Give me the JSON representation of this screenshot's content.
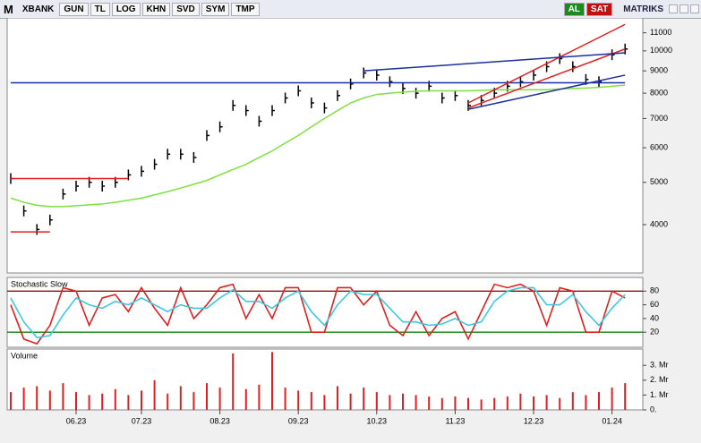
{
  "toolbar": {
    "symbol_icon": "M",
    "symbol": "XBANK",
    "buttons": [
      "GUN",
      "TL",
      "LOG",
      "KHN",
      "SVD",
      "SYM",
      "TMP"
    ],
    "buy": "AL",
    "sell": "SAT",
    "brand": "MATRIKS"
  },
  "chart_data": [
    {
      "type": "stock",
      "log": true,
      "color": "#000000",
      "values": [
        5100,
        4300,
        3900,
        4100,
        4700,
        4900,
        5000,
        4900,
        5000,
        5200,
        5300,
        5500,
        5800,
        5800,
        5700,
        6400,
        6700,
        7500,
        7300,
        6900,
        7300,
        7800,
        8100,
        7600,
        7400,
        7900,
        8400,
        8900,
        8800,
        8500,
        8200,
        8000,
        8300,
        7800,
        7900,
        7500,
        7700,
        8000,
        8300,
        8500,
        8800,
        9200,
        9600,
        9200,
        8600,
        8500,
        9800,
        10100
      ],
      "ma": {
        "color": "#7ee040",
        "values": [
          4600,
          4500,
          4430,
          4400,
          4400,
          4420,
          4440,
          4460,
          4500,
          4550,
          4600,
          4680,
          4760,
          4850,
          4950,
          5050,
          5200,
          5350,
          5500,
          5700,
          5900,
          6150,
          6400,
          6700,
          7000,
          7300,
          7600,
          7800,
          7950,
          8000,
          8050,
          8080,
          8100,
          8100,
          8100,
          8100,
          8120,
          8150,
          8150,
          8150,
          8150,
          8150,
          8180,
          8200,
          8220,
          8250,
          8300,
          8350
        ]
      },
      "lines": [
        {
          "color": "#1a2fa0",
          "x": [
            0,
            47
          ],
          "values": [
            8450,
            8450
          ]
        },
        {
          "color": "#e02020",
          "x": [
            0,
            9
          ],
          "values": [
            5100,
            5100
          ]
        },
        {
          "color": "#e02020",
          "x": [
            0,
            3
          ],
          "values": [
            3850,
            3850
          ]
        },
        {
          "color": "#e02020",
          "x": [
            35,
            47
          ],
          "values": [
            7600,
            11500
          ]
        },
        {
          "color": "#e02020",
          "x": [
            35,
            47
          ],
          "values": [
            7400,
            10100
          ]
        },
        {
          "color": "#1a2fa0",
          "x": [
            35,
            47
          ],
          "values": [
            7350,
            8800
          ]
        },
        {
          "color": "#1a2fa0",
          "x": [
            27,
            47
          ],
          "values": [
            9000,
            9900
          ]
        }
      ],
      "ylim": [
        3100,
        11900
      ],
      "yticks": [
        4000,
        5000,
        6000,
        7000,
        8000,
        9000,
        10000,
        11000
      ]
    },
    {
      "type": "line",
      "title": "Stochastic Slow",
      "series": [
        {
          "color": "#e02020",
          "values": [
            60,
            10,
            3,
            30,
            85,
            80,
            30,
            70,
            75,
            50,
            85,
            55,
            30,
            85,
            40,
            60,
            85,
            90,
            40,
            75,
            40,
            85,
            85,
            20,
            20,
            85,
            85,
            60,
            80,
            30,
            15,
            50,
            15,
            40,
            50,
            10,
            50,
            90,
            85,
            90,
            80,
            30,
            85,
            80,
            20,
            20,
            80,
            70
          ]
        },
        {
          "color": "#3cc8e0",
          "values": [
            70,
            35,
            12,
            15,
            45,
            70,
            60,
            55,
            65,
            60,
            70,
            60,
            50,
            60,
            55,
            55,
            70,
            82,
            65,
            65,
            55,
            70,
            80,
            50,
            30,
            60,
            80,
            75,
            75,
            55,
            35,
            35,
            30,
            32,
            40,
            30,
            35,
            65,
            80,
            85,
            85,
            60,
            60,
            75,
            50,
            30,
            55,
            75
          ]
        }
      ],
      "hlines": [
        {
          "value": 80,
          "color": "#8b1010"
        },
        {
          "value": 20,
          "color": "#108010"
        }
      ],
      "ylim": [
        -2,
        100
      ],
      "yticks": [
        20,
        40,
        60,
        80
      ]
    },
    {
      "type": "bar",
      "title": "Volume",
      "color": "#e02020",
      "categories": [
        null,
        null,
        null,
        null,
        null,
        "06.23",
        null,
        null,
        null,
        null,
        "07.23",
        null,
        null,
        null,
        null,
        null,
        "08.23",
        null,
        null,
        null,
        null,
        null,
        "09.23",
        null,
        null,
        null,
        null,
        null,
        "10.23",
        null,
        null,
        null,
        null,
        null,
        "11.23",
        null,
        null,
        null,
        null,
        null,
        "12.23",
        null,
        null,
        null,
        null,
        null,
        "01.24",
        null
      ],
      "values": [
        1.2,
        1.5,
        1.6,
        1.3,
        1.8,
        1.2,
        1.0,
        1.1,
        1.4,
        1.0,
        1.3,
        2.0,
        1.1,
        1.6,
        1.2,
        1.8,
        1.5,
        3.8,
        1.4,
        1.7,
        3.9,
        1.5,
        1.3,
        1.2,
        1.0,
        1.6,
        1.1,
        1.5,
        1.2,
        1.0,
        1.1,
        1.0,
        0.9,
        0.8,
        0.9,
        0.8,
        0.7,
        0.8,
        0.9,
        1.1,
        0.9,
        1.0,
        0.8,
        1.2,
        1.0,
        1.2,
        1.5,
        1.8
      ],
      "ylim": [
        0,
        4.1
      ],
      "yticks": [
        {
          "value": 0,
          "label": "0."
        },
        {
          "value": 1,
          "label": "1. Mr"
        },
        {
          "value": 2,
          "label": "2. Mr"
        },
        {
          "value": 3,
          "label": "3. Mr"
        }
      ]
    }
  ]
}
